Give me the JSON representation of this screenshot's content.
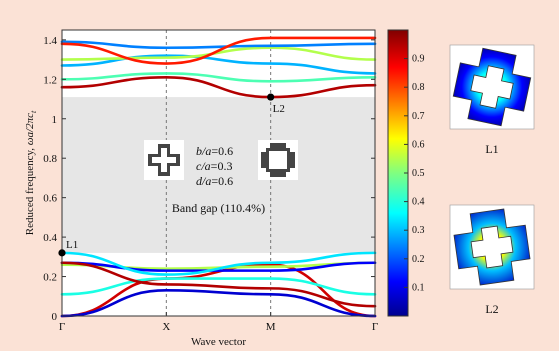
{
  "chart_data": {
    "type": "line",
    "xlabel": "Wave vector",
    "ylabel_text": "Reduced frequency,",
    "ylabel_math": "ωa/2πc",
    "ylabel_sub": "t",
    "x_ticks": [
      "Γ",
      "X",
      "M",
      "Γ"
    ],
    "y_ticks": [
      "0",
      "0.2",
      "0.4",
      "0.6",
      "0.8",
      "1",
      "1.2",
      "1.4"
    ],
    "ylim": [
      0,
      1.45
    ],
    "band_gap": {
      "lower": 0.32,
      "upper": 1.11,
      "label": "Band gap (110.4%)"
    },
    "params": [
      "b/a=0.6",
      "c/a=0.3",
      "d/a=0.6"
    ],
    "points": [
      {
        "label": "L1",
        "k": 0,
        "f": 0.32
      },
      {
        "label": "L2",
        "k": 2,
        "f": 1.11
      }
    ],
    "colorbar": {
      "ticks": [
        "0.1",
        "0.2",
        "0.3",
        "0.4",
        "0.5",
        "0.6",
        "0.7",
        "0.8",
        "0.9"
      ],
      "range": [
        0,
        1
      ]
    },
    "series": [
      {
        "k": [
          0,
          1,
          2,
          3
        ],
        "f": [
          0,
          0.19,
          0.26,
          0
        ],
        "c": 0.92
      },
      {
        "k": [
          0,
          1,
          2,
          3
        ],
        "f": [
          0,
          0.13,
          0.11,
          0
        ],
        "c": 0.08
      },
      {
        "k": [
          0,
          1,
          2,
          3
        ],
        "f": [
          0.11,
          0.19,
          0.19,
          0.11
        ],
        "c": 0.4
      },
      {
        "k": [
          0,
          1,
          2,
          3
        ],
        "f": [
          0.26,
          0.24,
          0.25,
          0.27
        ],
        "c": 0.55
      },
      {
        "k": [
          0,
          1,
          2,
          3
        ],
        "f": [
          0.27,
          0.23,
          0.23,
          0.27
        ],
        "c": 0.12
      },
      {
        "k": [
          0,
          1,
          2,
          3
        ],
        "f": [
          0.27,
          0.16,
          0.14,
          0.05
        ],
        "c": 0.95
      },
      {
        "k": [
          0,
          1,
          2,
          3
        ],
        "f": [
          0.32,
          0.21,
          0.27,
          0.32
        ],
        "c": 0.35
      },
      {
        "k": [
          0,
          1,
          2,
          3
        ],
        "f": [
          1.16,
          1.21,
          1.11,
          1.17
        ],
        "c": 0.95
      },
      {
        "k": [
          0,
          1,
          2,
          3
        ],
        "f": [
          1.2,
          1.23,
          1.19,
          1.21
        ],
        "c": 0.45
      },
      {
        "k": [
          0,
          1,
          2,
          3
        ],
        "f": [
          1.27,
          1.32,
          1.28,
          1.23
        ],
        "c": 0.3
      },
      {
        "k": [
          0,
          1,
          2,
          3
        ],
        "f": [
          1.3,
          1.31,
          1.36,
          1.3
        ],
        "c": 0.55
      },
      {
        "k": [
          0,
          1,
          2,
          3
        ],
        "f": [
          1.39,
          1.36,
          1.37,
          1.38
        ],
        "c": 0.25
      },
      {
        "k": [
          0,
          1,
          2,
          3
        ],
        "f": [
          1.38,
          1.28,
          1.41,
          1.41
        ],
        "c": 0.85
      }
    ]
  },
  "mode_labels": [
    "L1",
    "L2"
  ]
}
